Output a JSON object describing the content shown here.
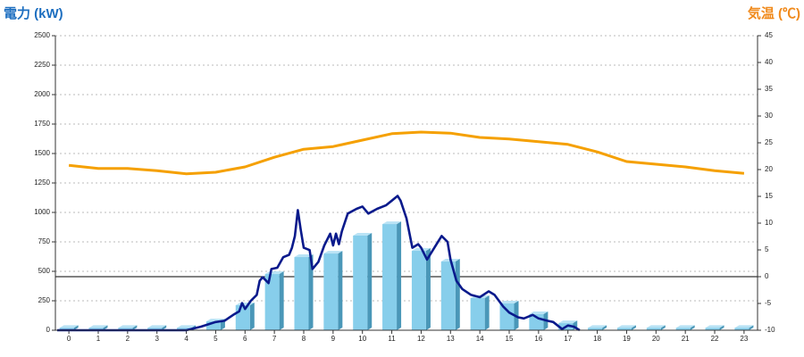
{
  "chart_data": {
    "type": "combo",
    "title": "電力 (kW)",
    "y2_title": "気温 (℃)",
    "xlim": [
      -0.46,
      23.46
    ],
    "xticks": [
      0,
      1,
      2,
      3,
      4,
      5,
      6,
      7,
      8,
      9,
      10,
      11,
      12,
      13,
      14,
      15,
      16,
      17,
      18,
      19,
      20,
      21,
      22,
      23
    ],
    "ylim": [
      0,
      2500
    ],
    "yticks": [
      0,
      250,
      500,
      750,
      1000,
      1250,
      1500,
      1750,
      2000,
      2250,
      2500
    ],
    "y2lim": [
      -10,
      45
    ],
    "y2ticks": [
      -10,
      -5,
      0,
      5,
      10,
      15,
      20,
      25,
      30,
      35,
      40,
      45
    ],
    "grid": true,
    "reference_line_y2": 0,
    "series": [
      {
        "type": "bar",
        "color": "#87ceeb",
        "x": [
          0,
          1,
          2,
          3,
          4,
          5,
          6,
          7,
          8,
          9,
          10,
          11,
          12,
          13,
          14,
          15,
          16,
          17,
          18,
          19,
          20,
          21,
          22,
          23
        ],
        "values": [
          20,
          20,
          20,
          20,
          20,
          75,
          212,
          477,
          621,
          651,
          803,
          901,
          674,
          583,
          273,
          227,
          136,
          60,
          20,
          20,
          20,
          20,
          20,
          20
        ]
      },
      {
        "type": "line",
        "color": "#f5a000",
        "axis": "y2",
        "x": [
          0,
          1,
          2,
          3,
          4,
          5,
          6,
          7,
          8,
          9,
          10,
          11,
          12,
          13,
          14,
          15,
          16,
          17,
          18,
          19,
          20,
          21,
          22,
          23
        ],
        "values": [
          20.8,
          20.2,
          20.2,
          19.8,
          19.2,
          19.5,
          20.5,
          22.3,
          23.8,
          24.3,
          25.5,
          26.7,
          27,
          26.8,
          26,
          25.7,
          25.2,
          24.7,
          23.3,
          21.5,
          21,
          20.5,
          19.8,
          19.3
        ]
      },
      {
        "type": "line",
        "color": "#0a1a8c",
        "x": [
          -0.4,
          4.0,
          4.5,
          5.0,
          5.3,
          5.6,
          5.8,
          5.9,
          6.0,
          6.2,
          6.4,
          6.5,
          6.6,
          6.8,
          6.9,
          7.1,
          7.3,
          7.5,
          7.6,
          7.7,
          7.8,
          7.9,
          8.0,
          8.2,
          8.3,
          8.5,
          8.7,
          8.9,
          9.0,
          9.1,
          9.2,
          9.3,
          9.5,
          9.8,
          10.0,
          10.2,
          10.5,
          10.8,
          11.0,
          11.2,
          11.3,
          11.5,
          11.7,
          11.9,
          12.0,
          12.2,
          12.4,
          12.6,
          12.7,
          12.9,
          13.0,
          13.2,
          13.4,
          13.7,
          14.0,
          14.3,
          14.5,
          14.8,
          15.0,
          15.3,
          15.5,
          15.8,
          16.0,
          16.3,
          16.5,
          16.8,
          17.0,
          17.2,
          17.4
        ],
        "values": [
          0,
          0,
          30,
          70,
          80,
          130,
          160,
          230,
          180,
          250,
          300,
          420,
          450,
          400,
          520,
          530,
          620,
          640,
          700,
          800,
          1020,
          850,
          700,
          680,
          520,
          580,
          720,
          820,
          720,
          820,
          730,
          840,
          990,
          1030,
          1050,
          990,
          1030,
          1060,
          1100,
          1140,
          1100,
          950,
          700,
          730,
          700,
          600,
          680,
          760,
          800,
          750,
          600,
          420,
          350,
          300,
          280,
          330,
          300,
          200,
          150,
          110,
          100,
          130,
          100,
          80,
          70,
          10,
          40,
          30,
          0
        ]
      }
    ]
  }
}
